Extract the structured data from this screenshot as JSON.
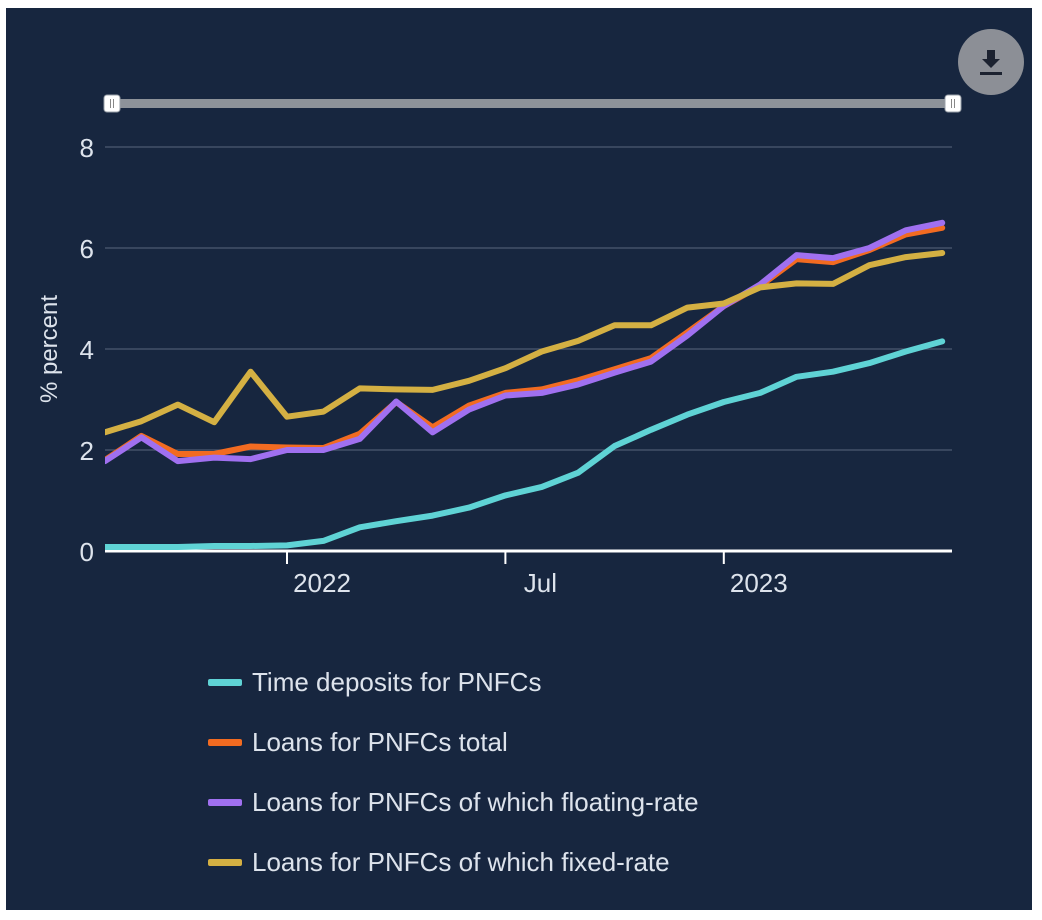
{
  "chart_data": {
    "type": "line",
    "ylabel": "% percent",
    "xlabel": "",
    "ylim": [
      0,
      8
    ],
    "yticks": [
      "0",
      "2",
      "4",
      "6",
      "8"
    ],
    "xtick_labels": [
      {
        "label": "2022",
        "index": 5
      },
      {
        "label": "Jul",
        "index": 11
      },
      {
        "label": "2023",
        "index": 17
      }
    ],
    "x": [
      "2021-08",
      "2021-09",
      "2021-10",
      "2021-11",
      "2021-12",
      "2022-01",
      "2022-02",
      "2022-03",
      "2022-04",
      "2022-05",
      "2022-06",
      "2022-07",
      "2022-08",
      "2022-09",
      "2022-10",
      "2022-11",
      "2022-12",
      "2023-01",
      "2023-02",
      "2023-03",
      "2023-04",
      "2023-05",
      "2023-06",
      "2023-07"
    ],
    "series": [
      {
        "name": "Time deposits for PNFCs",
        "color": "#5fd3d5",
        "values": [
          0.08,
          0.08,
          0.08,
          0.1,
          0.1,
          0.11,
          0.2,
          0.47,
          0.59,
          0.7,
          0.86,
          1.1,
          1.27,
          1.55,
          2.08,
          2.4,
          2.7,
          2.95,
          3.13,
          3.45,
          3.55,
          3.72,
          3.95,
          4.15
        ]
      },
      {
        "name": "Loans for PNFCs total",
        "color": "#f26b21",
        "values": [
          1.8,
          2.28,
          1.92,
          1.92,
          2.07,
          2.05,
          2.04,
          2.32,
          2.95,
          2.45,
          2.88,
          3.13,
          3.2,
          3.38,
          3.6,
          3.82,
          4.33,
          4.85,
          5.25,
          5.78,
          5.72,
          5.96,
          6.27,
          6.4
        ]
      },
      {
        "name": "Loans for PNFCs of which floating-rate",
        "color": "#a070f0",
        "values": [
          1.78,
          2.25,
          1.78,
          1.85,
          1.82,
          2.0,
          2.0,
          2.22,
          2.96,
          2.35,
          2.8,
          3.08,
          3.13,
          3.3,
          3.53,
          3.75,
          4.27,
          4.85,
          5.28,
          5.86,
          5.8,
          6.0,
          6.35,
          6.5
        ]
      },
      {
        "name": "Loans for PNFCs of which fixed-rate",
        "color": "#d4b043",
        "values": [
          2.35,
          2.57,
          2.9,
          2.55,
          3.55,
          2.66,
          2.76,
          3.22,
          3.2,
          3.19,
          3.37,
          3.62,
          3.95,
          4.16,
          4.47,
          4.47,
          4.82,
          4.9,
          5.22,
          5.3,
          5.29,
          5.66,
          5.82,
          5.9
        ]
      }
    ]
  },
  "icons": {
    "download": "download-icon"
  }
}
